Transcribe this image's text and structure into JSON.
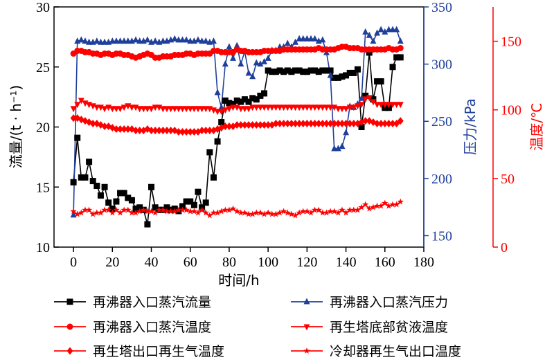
{
  "chart_data": {
    "type": "line",
    "xlabel": "时间/h",
    "ylabel_left": "流量/(t · h⁻¹)",
    "ylabel_mid": "压力/kPa",
    "ylabel_right": "温度/℃",
    "xlim": [
      -10,
      180
    ],
    "ylim_left": [
      10,
      30
    ],
    "ylim_mid": [
      140,
      350
    ],
    "ylim_right": [
      0,
      175
    ],
    "xticks": [
      0,
      20,
      40,
      60,
      80,
      100,
      120,
      140,
      160,
      180
    ],
    "yticks_left": [
      10,
      15,
      20,
      25,
      30
    ],
    "yticks_mid": [
      150,
      200,
      250,
      300,
      350
    ],
    "yticks_right": [
      0,
      50,
      100,
      150
    ],
    "legend_position": "bottom",
    "series": [
      {
        "name": "再沸器入口蒸汽流量",
        "axis": "left",
        "color": "#000000",
        "marker": "square",
        "x": [
          0,
          2,
          4,
          6,
          8,
          10,
          12,
          14,
          16,
          18,
          20,
          22,
          24,
          26,
          28,
          30,
          32,
          34,
          36,
          38,
          40,
          42,
          44,
          46,
          48,
          50,
          52,
          54,
          56,
          58,
          60,
          62,
          64,
          66,
          68,
          70,
          72,
          74,
          76,
          78,
          80,
          82,
          84,
          86,
          88,
          90,
          92,
          94,
          96,
          98,
          100,
          102,
          104,
          106,
          108,
          110,
          112,
          114,
          116,
          118,
          120,
          122,
          124,
          126,
          128,
          130,
          132,
          134,
          136,
          138,
          140,
          142,
          144,
          146,
          148,
          150,
          152,
          154,
          156,
          158,
          160,
          162,
          164,
          166,
          168
        ],
        "y": [
          15.4,
          19.1,
          15.8,
          15.8,
          17.1,
          15.5,
          15.1,
          14.3,
          15.0,
          13.7,
          13.2,
          13.8,
          14.5,
          14.5,
          14.1,
          13.9,
          13.2,
          13.3,
          13.1,
          11.9,
          15.0,
          13.3,
          13.1,
          13.1,
          13.3,
          13.1,
          13.2,
          13.0,
          13.4,
          13.8,
          13.8,
          13.5,
          14.6,
          13.3,
          13.7,
          17.9,
          15.8,
          18.8,
          20.4,
          22.2,
          22.0,
          21.9,
          22.2,
          22.1,
          22.3,
          22.1,
          22.4,
          22.3,
          22.6,
          22.8,
          24.7,
          24.6,
          24.6,
          24.7,
          24.6,
          24.7,
          24.6,
          24.7,
          24.7,
          24.6,
          24.6,
          24.7,
          24.7,
          24.6,
          24.7,
          24.7,
          24.7,
          24.1,
          24.1,
          24.2,
          24.3,
          24.5,
          24.5,
          24.8,
          20.0,
          22.6,
          26.2,
          22.3,
          23.8,
          23.8,
          21.6,
          21.6,
          25.0,
          25.8,
          25.8
        ]
      },
      {
        "name": "再沸器入口蒸汽压力",
        "axis": "mid",
        "color": "#1f3f9a",
        "marker": "triangle-up",
        "x": [
          0,
          2,
          4,
          6,
          8,
          10,
          12,
          14,
          16,
          18,
          20,
          22,
          24,
          26,
          28,
          30,
          32,
          34,
          36,
          38,
          40,
          42,
          44,
          46,
          48,
          50,
          52,
          54,
          56,
          58,
          60,
          62,
          64,
          66,
          68,
          70,
          72,
          74,
          76,
          78,
          80,
          82,
          84,
          86,
          88,
          90,
          92,
          94,
          96,
          98,
          100,
          102,
          104,
          106,
          108,
          110,
          112,
          114,
          116,
          118,
          120,
          122,
          124,
          126,
          128,
          130,
          132,
          134,
          136,
          138,
          140,
          142,
          144,
          146,
          148,
          150,
          152,
          154,
          156,
          158,
          160,
          162,
          164,
          166,
          168
        ],
        "y": [
          168,
          320,
          321,
          320,
          319,
          319,
          320,
          319,
          319,
          319,
          320,
          320,
          320,
          320,
          320,
          320,
          321,
          320,
          320,
          321,
          319,
          320,
          319,
          320,
          320,
          321,
          322,
          321,
          321,
          321,
          320,
          320,
          321,
          320,
          320,
          319,
          320,
          275,
          262,
          300,
          315,
          305,
          316,
          300,
          311,
          292,
          289,
          301,
          300,
          302,
          305,
          312,
          312,
          315,
          315,
          318,
          315,
          319,
          322,
          322,
          322,
          322,
          322,
          320,
          321,
          310,
          290,
          226,
          226,
          228,
          240,
          263,
          262,
          265,
          270,
          328,
          325,
          320,
          327,
          330,
          328,
          330,
          330,
          330,
          320
        ]
      },
      {
        "name": "再沸器入口蒸汽温度",
        "axis": "right",
        "color": "#ff0000",
        "marker": "circle",
        "x": [
          0,
          2,
          4,
          6,
          8,
          10,
          12,
          14,
          16,
          18,
          20,
          22,
          24,
          26,
          28,
          30,
          32,
          34,
          36,
          38,
          40,
          42,
          44,
          46,
          48,
          50,
          52,
          54,
          56,
          58,
          60,
          62,
          64,
          66,
          68,
          70,
          72,
          74,
          76,
          78,
          80,
          82,
          84,
          86,
          88,
          90,
          92,
          94,
          96,
          98,
          100,
          102,
          104,
          106,
          108,
          110,
          112,
          114,
          116,
          118,
          120,
          122,
          124,
          126,
          128,
          130,
          132,
          134,
          136,
          138,
          140,
          142,
          144,
          146,
          148,
          150,
          152,
          154,
          156,
          158,
          160,
          162,
          164,
          166,
          168
        ],
        "y": [
          141,
          143,
          143,
          142,
          142,
          141,
          141,
          140,
          141,
          141,
          140,
          141,
          141,
          140,
          140,
          139,
          138,
          139,
          140,
          141,
          140,
          138,
          138,
          139,
          139,
          139,
          140,
          140,
          140,
          141,
          141,
          140,
          141,
          141,
          141,
          141,
          143,
          143,
          142,
          142,
          142,
          142,
          144,
          143,
          143,
          142,
          142,
          142,
          142,
          143,
          143,
          143,
          143,
          143,
          144,
          144,
          144,
          144,
          144,
          144,
          144,
          144,
          144,
          145,
          144,
          144,
          144,
          144,
          145,
          146,
          146,
          145,
          145,
          145,
          144,
          144,
          144,
          144,
          144,
          144,
          144,
          145,
          144,
          144,
          145
        ]
      },
      {
        "name": "再生塔底部贫液温度",
        "axis": "right",
        "color": "#ff0000",
        "marker": "triangle-down",
        "x": [
          0,
          2,
          4,
          6,
          8,
          10,
          12,
          14,
          16,
          18,
          20,
          22,
          24,
          26,
          28,
          30,
          32,
          34,
          36,
          38,
          40,
          42,
          44,
          46,
          48,
          50,
          52,
          54,
          56,
          58,
          60,
          62,
          64,
          66,
          68,
          70,
          72,
          74,
          76,
          78,
          80,
          82,
          84,
          86,
          88,
          90,
          92,
          94,
          96,
          98,
          100,
          102,
          104,
          106,
          108,
          110,
          112,
          114,
          116,
          118,
          120,
          122,
          124,
          126,
          128,
          130,
          132,
          134,
          136,
          138,
          140,
          142,
          144,
          146,
          148,
          150,
          152,
          154,
          156,
          158,
          160,
          162,
          164,
          166,
          168
        ],
        "y": [
          101,
          104,
          107,
          105,
          104,
          103,
          102,
          102,
          101,
          102,
          101,
          101,
          101,
          102,
          103,
          102,
          102,
          101,
          101,
          101,
          101,
          102,
          102,
          101,
          101,
          101,
          101,
          101,
          101,
          101,
          101,
          101,
          101,
          101,
          101,
          101,
          100,
          99,
          99,
          100,
          101,
          102,
          102,
          101,
          101,
          101,
          102,
          102,
          102,
          102,
          102,
          102,
          102,
          102,
          102,
          102,
          102,
          102,
          102,
          102,
          102,
          102,
          102,
          102,
          102,
          102,
          102,
          102,
          101,
          101,
          101,
          102,
          102,
          103,
          104,
          108,
          109,
          106,
          104,
          104,
          104,
          104,
          104,
          104,
          104
        ]
      },
      {
        "name": "再生塔出口再生气温度",
        "axis": "right",
        "color": "#ff0000",
        "marker": "diamond",
        "x": [
          0,
          2,
          4,
          6,
          8,
          10,
          12,
          14,
          16,
          18,
          20,
          22,
          24,
          26,
          28,
          30,
          32,
          34,
          36,
          38,
          40,
          42,
          44,
          46,
          48,
          50,
          52,
          54,
          56,
          58,
          60,
          62,
          64,
          66,
          68,
          70,
          72,
          74,
          76,
          78,
          80,
          82,
          84,
          86,
          88,
          90,
          92,
          94,
          96,
          98,
          100,
          102,
          104,
          106,
          108,
          110,
          112,
          114,
          116,
          118,
          120,
          122,
          124,
          126,
          128,
          130,
          132,
          134,
          136,
          138,
          140,
          142,
          144,
          146,
          148,
          150,
          152,
          154,
          156,
          158,
          160,
          162,
          164,
          166,
          168
        ],
        "y": [
          94,
          94,
          93,
          92,
          91,
          90,
          90,
          89,
          88,
          88,
          87,
          86,
          86,
          86,
          86,
          86,
          85,
          85,
          85,
          86,
          85,
          85,
          85,
          85,
          85,
          85,
          85,
          84,
          84,
          84,
          84,
          84,
          84,
          85,
          85,
          85,
          85,
          86,
          87,
          88,
          88,
          88,
          89,
          89,
          89,
          89,
          89,
          89,
          89,
          89,
          89,
          89,
          90,
          90,
          90,
          90,
          90,
          90,
          90,
          90,
          90,
          90,
          90,
          90,
          90,
          90,
          90,
          90,
          90,
          90,
          90,
          90,
          90,
          90,
          91,
          92,
          92,
          91,
          90,
          90,
          90,
          90,
          90,
          90,
          92
        ]
      },
      {
        "name": "冷却器再生气出口温度",
        "axis": "right",
        "color": "#ff0000",
        "marker": "star",
        "x": [
          0,
          2,
          4,
          6,
          8,
          10,
          12,
          14,
          16,
          18,
          20,
          22,
          24,
          26,
          28,
          30,
          32,
          34,
          36,
          38,
          40,
          42,
          44,
          46,
          48,
          50,
          52,
          54,
          56,
          58,
          60,
          62,
          64,
          66,
          68,
          70,
          72,
          74,
          76,
          78,
          80,
          82,
          84,
          86,
          88,
          90,
          92,
          94,
          96,
          98,
          100,
          102,
          104,
          106,
          108,
          110,
          112,
          114,
          116,
          118,
          120,
          122,
          124,
          126,
          128,
          130,
          132,
          134,
          136,
          138,
          140,
          142,
          144,
          146,
          148,
          150,
          152,
          154,
          156,
          158,
          160,
          162,
          164,
          166,
          168
        ],
        "y": [
          26,
          24,
          25,
          27,
          27,
          24,
          25,
          25,
          27,
          27,
          25,
          27,
          25,
          27,
          27,
          25,
          25,
          26,
          27,
          26,
          26,
          25,
          27,
          27,
          26,
          26,
          26,
          27,
          27,
          27,
          26,
          26,
          25,
          27,
          25,
          23,
          25,
          25,
          26,
          27,
          27,
          28,
          26,
          25,
          25,
          24,
          24,
          25,
          25,
          24,
          25,
          24,
          24,
          25,
          26,
          25,
          24,
          23,
          25,
          26,
          26,
          25,
          27,
          27,
          25,
          25,
          26,
          26,
          25,
          27,
          25,
          27,
          27,
          27,
          29,
          31,
          28,
          29,
          30,
          30,
          32,
          30,
          31,
          31,
          33
        ]
      }
    ]
  }
}
